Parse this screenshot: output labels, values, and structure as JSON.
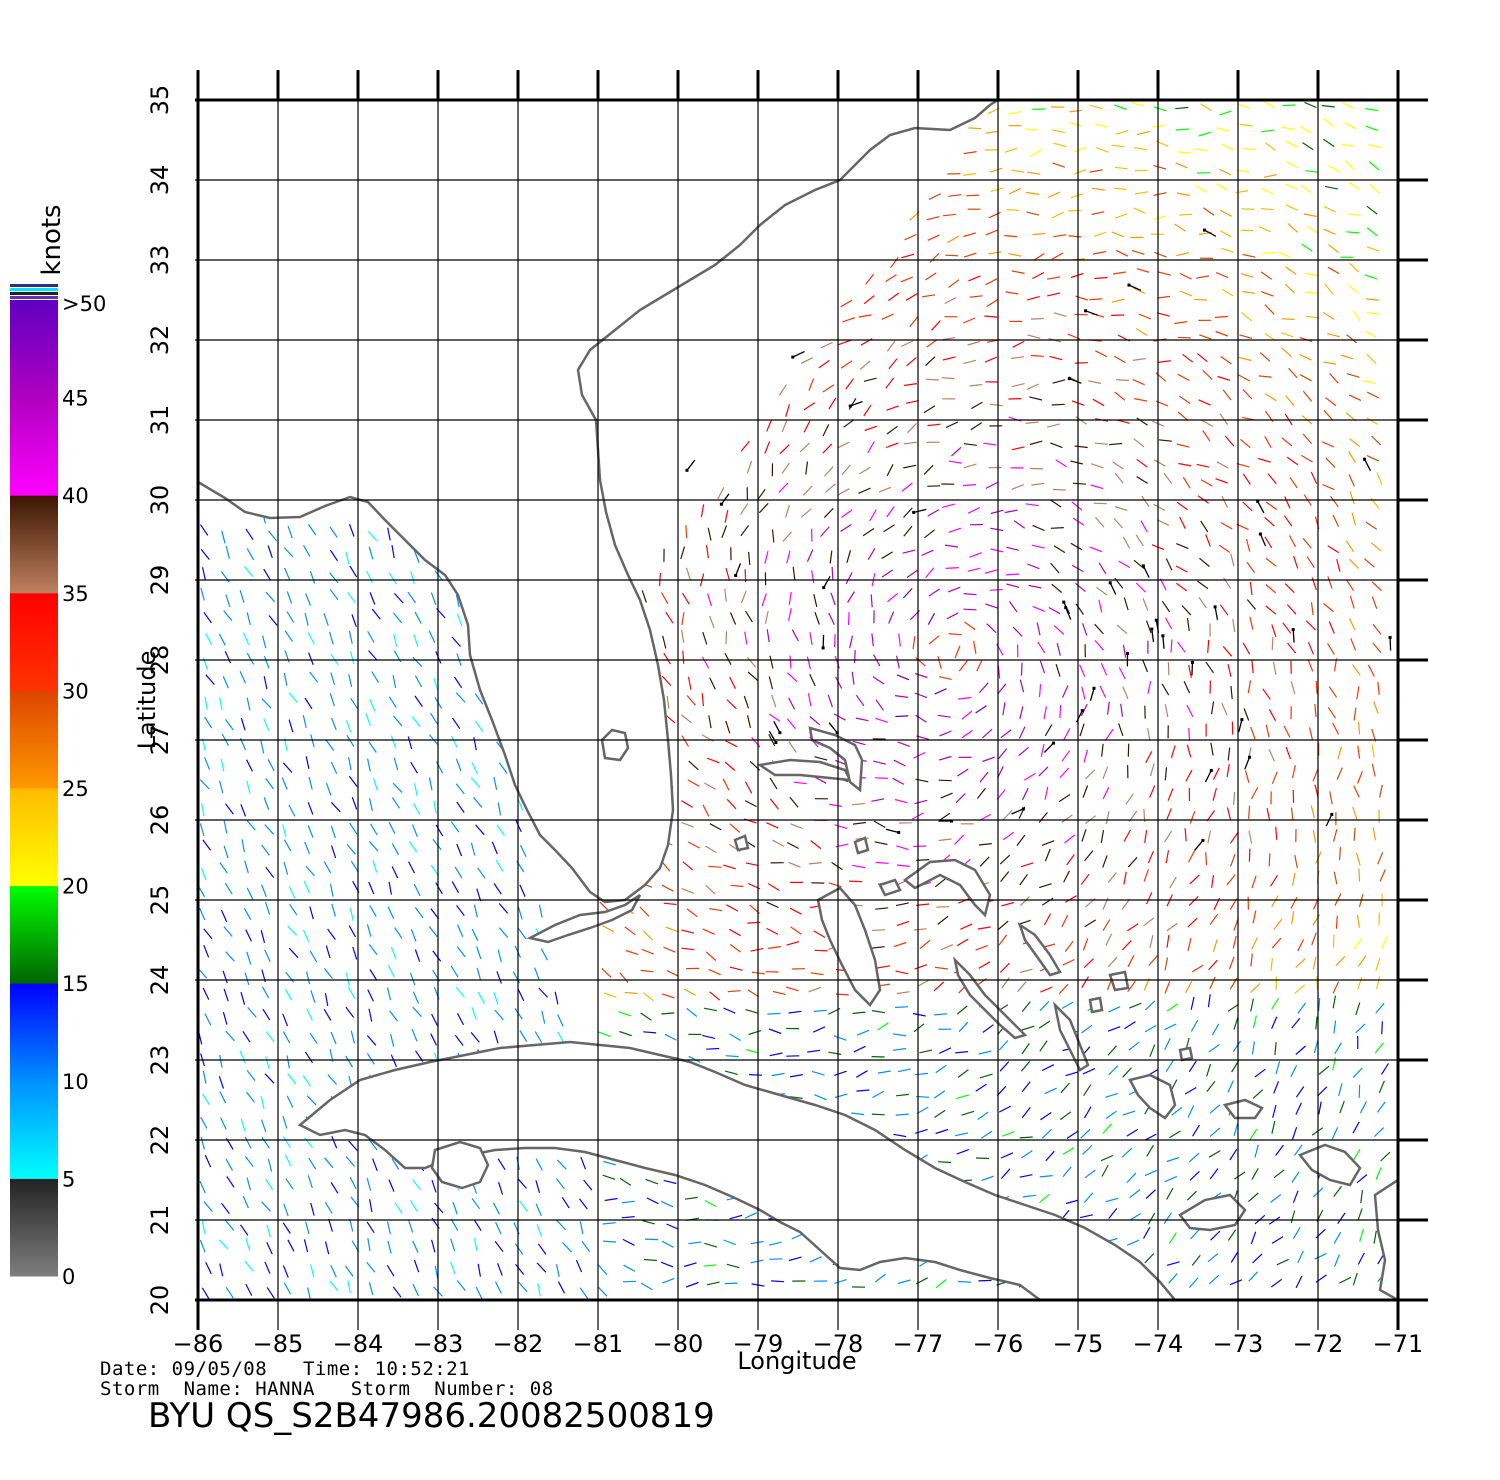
{
  "map": {
    "xlabel": "Longitude",
    "ylabel": "Latitude",
    "lon_range": [
      -86,
      -71
    ],
    "lat_range": [
      20,
      35
    ],
    "lon_ticks": [
      "-86",
      "-85",
      "-84",
      "-83",
      "-82",
      "-81",
      "-80",
      "-79",
      "-78",
      "-77",
      "-76",
      "-75",
      "-74",
      "-73",
      "-72",
      "-71"
    ],
    "lat_ticks": [
      "20",
      "21",
      "22",
      "23",
      "24",
      "25",
      "26",
      "27",
      "28",
      "29",
      "30",
      "31",
      "32",
      "33",
      "34",
      "35"
    ],
    "grid": true,
    "land_color": "#ffffff",
    "coast_color": "#666666",
    "features": [
      "Florida peninsula",
      "Georgia/Carolina coast",
      "Cuba",
      "Bahamas",
      "Isle of Youth"
    ]
  },
  "colorbar": {
    "title": "knots",
    "top_label": ">50",
    "tick_labels": [
      "0",
      "5",
      "10",
      "15",
      "20",
      "25",
      "30",
      "35",
      "40",
      "45"
    ],
    "bands": [
      {
        "from": 0,
        "to": 5,
        "colors": [
          "#7e7e7e",
          "#222222"
        ]
      },
      {
        "from": 5,
        "to": 10,
        "colors": [
          "#00ffff",
          "#0090ff"
        ]
      },
      {
        "from": 10,
        "to": 15,
        "colors": [
          "#0090ff",
          "#0000ff"
        ]
      },
      {
        "from": 15,
        "to": 20,
        "colors": [
          "#006400",
          "#00ff00"
        ]
      },
      {
        "from": 20,
        "to": 25,
        "colors": [
          "#ffff00",
          "#ffbb00"
        ]
      },
      {
        "from": 25,
        "to": 30,
        "colors": [
          "#ff9900",
          "#dd4400"
        ]
      },
      {
        "from": 30,
        "to": 35,
        "colors": [
          "#ff3300",
          "#ff0000"
        ]
      },
      {
        "from": 35,
        "to": 40,
        "colors": [
          "#c08060",
          "#3a1500"
        ]
      },
      {
        "from": 40,
        "to": 45,
        "colors": [
          "#ff00ff",
          "#b000c0"
        ]
      },
      {
        "from": 45,
        "to": 50,
        "colors": [
          "#b000c0",
          "#6000c0"
        ]
      }
    ]
  },
  "storm": {
    "name": "HANNA",
    "number": "08",
    "center_lon": -76.6,
    "center_lat": 28.1
  },
  "footer": {
    "line1": "Date: 09/05/08   Time: 10:52:21",
    "line2": "Storm  Name: HANNA   Storm  Number: 08",
    "product": "BYU  QS_S2B47986.20082500819"
  }
}
